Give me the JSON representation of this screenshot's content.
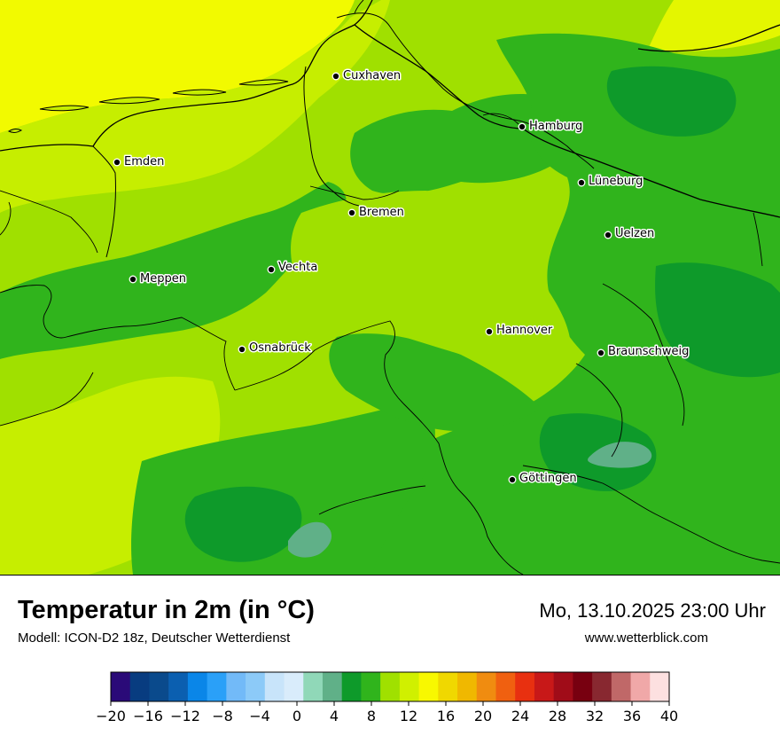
{
  "map": {
    "cities": [
      {
        "name": "Cuxhaven"
      },
      {
        "name": "Hamburg"
      },
      {
        "name": "Emden"
      },
      {
        "name": "Lüneburg"
      },
      {
        "name": "Bremen"
      },
      {
        "name": "Uelzen"
      },
      {
        "name": "Meppen"
      },
      {
        "name": "Vechta"
      },
      {
        "name": "Hannover"
      },
      {
        "name": "Osnabrück"
      },
      {
        "name": "Braunschweig"
      },
      {
        "name": "Göttingen"
      }
    ]
  },
  "header": {
    "title": "Temperatur in 2m (in °C)",
    "subtitle": "Modell: ICON-D2 18z, Deutscher Wetterdienst",
    "datetime": "Mo, 13.10.2025 23:00 Uhr",
    "website": "www.wetterblick.com"
  },
  "legend": {
    "unit": "°C",
    "min": -20,
    "max": 40,
    "step": 2,
    "colors": [
      "#2a0a78",
      "#083c80",
      "#0a4a8c",
      "#0b5fb0",
      "#0a86e8",
      "#2aa0f8",
      "#72baf8",
      "#8ccaf8",
      "#c8e4fa",
      "#d9ecfb",
      "#90d8b8",
      "#60b088",
      "#0e9a2a",
      "#30b41c",
      "#a0e000",
      "#d0f000",
      "#f8f800",
      "#f0d800",
      "#f0b800",
      "#f08c10",
      "#f06010",
      "#e83010",
      "#c81818",
      "#a00c18",
      "#780010",
      "#882830",
      "#c06868",
      "#f0a8a8",
      "#fde0e0"
    ],
    "tick_labels": [
      "−20",
      "−16",
      "−12",
      "−8",
      "−4",
      "0",
      "4",
      "8",
      "12",
      "16",
      "20",
      "24",
      "28",
      "32",
      "36",
      "40"
    ]
  },
  "colors": {
    "yellow": "#f2fa00",
    "yellow_green": "#c6ee00",
    "light_green": "#a0e000",
    "green": "#30b41c",
    "dark_green": "#0e9a2a",
    "sea_green": "#60b088"
  }
}
